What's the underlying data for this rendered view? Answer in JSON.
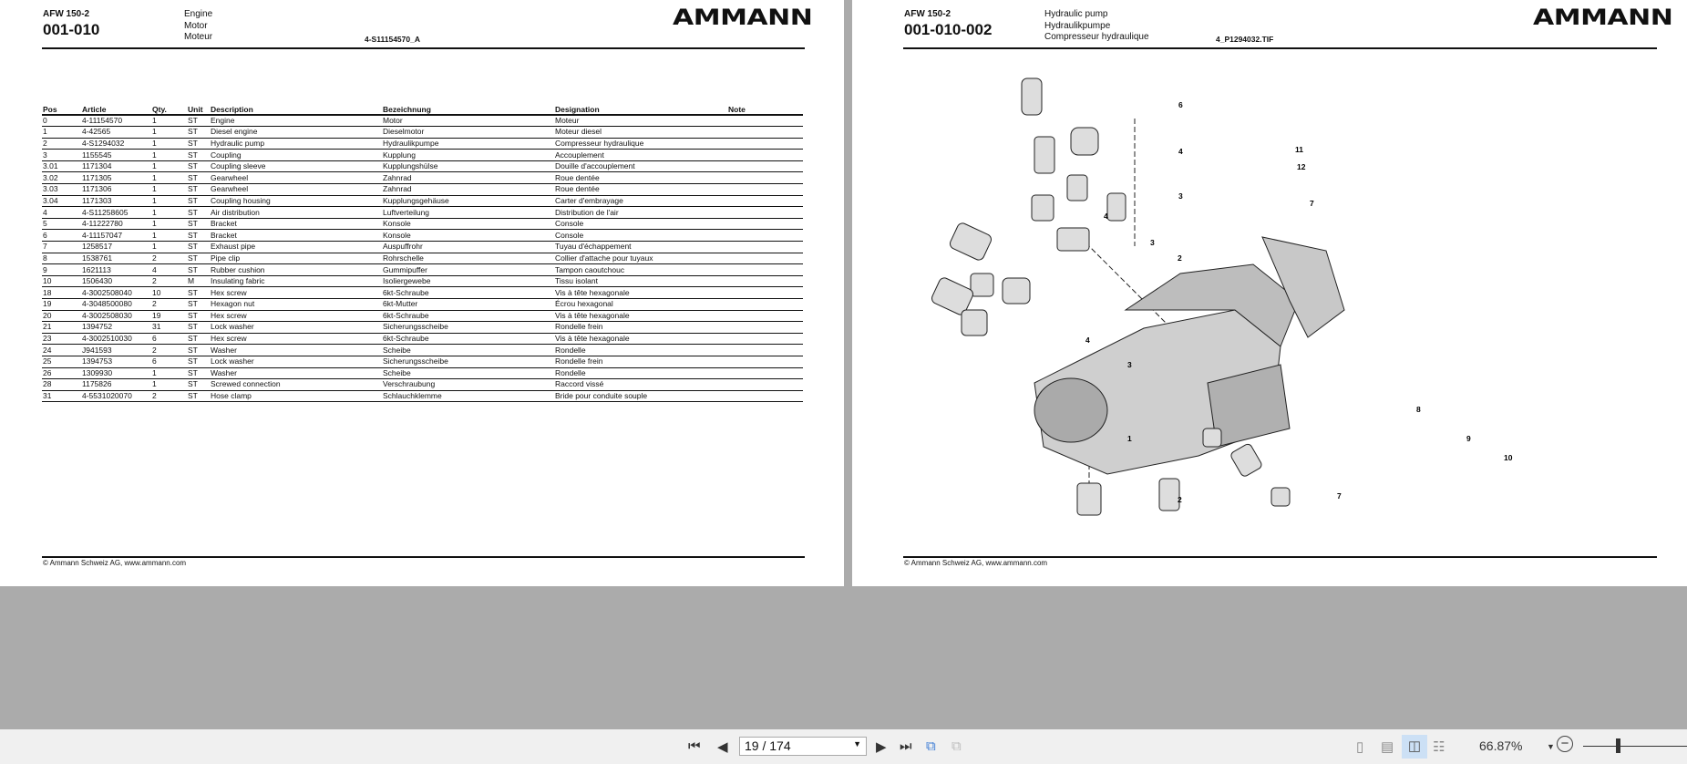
{
  "left_page": {
    "model": "AFW 150-2",
    "number": "001-010",
    "titles": [
      "Engine",
      "Motor",
      "Moteur"
    ],
    "reference": "4-S11154570_A",
    "logo": "AMMANN",
    "columns": [
      "Pos",
      "Article",
      "Qty.",
      "Unit",
      "Description",
      "Bezeichnung",
      "Designation",
      "Note"
    ],
    "rows": [
      [
        "0",
        "4-11154570",
        "1",
        "ST",
        "Engine",
        "Motor",
        "Moteur",
        ""
      ],
      [
        "1",
        "4-42565",
        "1",
        "ST",
        "Diesel engine",
        "Dieselmotor",
        "Moteur diesel",
        ""
      ],
      [
        "2",
        "4-S1294032",
        "1",
        "ST",
        "Hydraulic pump",
        "Hydraulikpumpe",
        "Compresseur hydraulique",
        ""
      ],
      [
        "3",
        "1155545",
        "1",
        "ST",
        "Coupling",
        "Kupplung",
        "Accouplement",
        ""
      ],
      [
        "3.01",
        "1171304",
        "1",
        "ST",
        "Coupling sleeve",
        "Kupplungshülse",
        "Douille d'accouplement",
        ""
      ],
      [
        "3.02",
        "1171305",
        "1",
        "ST",
        "Gearwheel",
        "Zahnrad",
        "Roue dentée",
        ""
      ],
      [
        "3.03",
        "1171306",
        "1",
        "ST",
        "Gearwheel",
        "Zahnrad",
        "Roue dentée",
        ""
      ],
      [
        "3.04",
        "1171303",
        "1",
        "ST",
        "Coupling housing",
        "Kupplungsgehäuse",
        "Carter d'embrayage",
        ""
      ],
      [
        "4",
        "4-S11258605",
        "1",
        "ST",
        "Air distribution",
        "Luftverteilung",
        "Distribution de l'air",
        ""
      ],
      [
        "5",
        "4-11222780",
        "1",
        "ST",
        "Bracket",
        "Konsole",
        "Console",
        ""
      ],
      [
        "6",
        "4-11157047",
        "1",
        "ST",
        "Bracket",
        "Konsole",
        "Console",
        ""
      ],
      [
        "7",
        "1258517",
        "1",
        "ST",
        "Exhaust pipe",
        "Auspuffrohr",
        "Tuyau d'échappement",
        ""
      ],
      [
        "8",
        "1538761",
        "2",
        "ST",
        "Pipe clip",
        "Rohrschelle",
        "Collier d'attache pour tuyaux",
        ""
      ],
      [
        "9",
        "1621113",
        "4",
        "ST",
        "Rubber cushion",
        "Gummipuffer",
        "Tampon caoutchouc",
        ""
      ],
      [
        "10",
        "1506430",
        "2",
        "M",
        "Insulating fabric",
        "Isoliergewebe",
        "Tissu isolant",
        ""
      ],
      [
        "18",
        "4-3002508040",
        "10",
        "ST",
        "Hex screw",
        "6kt-Schraube",
        "Vis à tête hexagonale",
        ""
      ],
      [
        "19",
        "4-3048500080",
        "2",
        "ST",
        "Hexagon nut",
        "6kt-Mutter",
        "Écrou hexagonal",
        ""
      ],
      [
        "20",
        "4-3002508030",
        "19",
        "ST",
        "Hex screw",
        "6kt-Schraube",
        "Vis à tête hexagonale",
        ""
      ],
      [
        "21",
        "1394752",
        "31",
        "ST",
        "Lock washer",
        "Sicherungsscheibe",
        "Rondelle frein",
        ""
      ],
      [
        "23",
        "4-3002510030",
        "6",
        "ST",
        "Hex screw",
        "6kt-Schraube",
        "Vis à tête hexagonale",
        ""
      ],
      [
        "24",
        "J941593",
        "2",
        "ST",
        "Washer",
        "Scheibe",
        "Rondelle",
        ""
      ],
      [
        "25",
        "1394753",
        "6",
        "ST",
        "Lock washer",
        "Sicherungsscheibe",
        "Rondelle frein",
        ""
      ],
      [
        "26",
        "1309930",
        "1",
        "ST",
        "Washer",
        "Scheibe",
        "Rondelle",
        ""
      ],
      [
        "28",
        "1175826",
        "1",
        "ST",
        "Screwed connection",
        "Verschraubung",
        "Raccord vissé",
        ""
      ],
      [
        "31",
        "4-5531020070",
        "2",
        "ST",
        "Hose clamp",
        "Schlauchklemme",
        "Bride pour conduite souple",
        ""
      ]
    ],
    "footer": "© Ammann Schweiz AG, www.ammann.com"
  },
  "right_page": {
    "model": "AFW 150-2",
    "number": "001-010-002",
    "titles": [
      "Hydraulic pump",
      "Hydraulikpumpe",
      "Compresseur hydraulique"
    ],
    "reference": "4_P1294032.TIF",
    "logo": "AMMANN",
    "callouts": [
      "6",
      "4",
      "11",
      "12",
      "3",
      "7",
      "4",
      "3",
      "2",
      "4",
      "3",
      "1",
      "8",
      "9",
      "10",
      "2",
      "7"
    ],
    "footer": "© Ammann Schweiz AG, www.ammann.com"
  },
  "toolbar": {
    "page_value": "19 / 174",
    "zoom": "66.87%",
    "active_view": "two-page"
  }
}
